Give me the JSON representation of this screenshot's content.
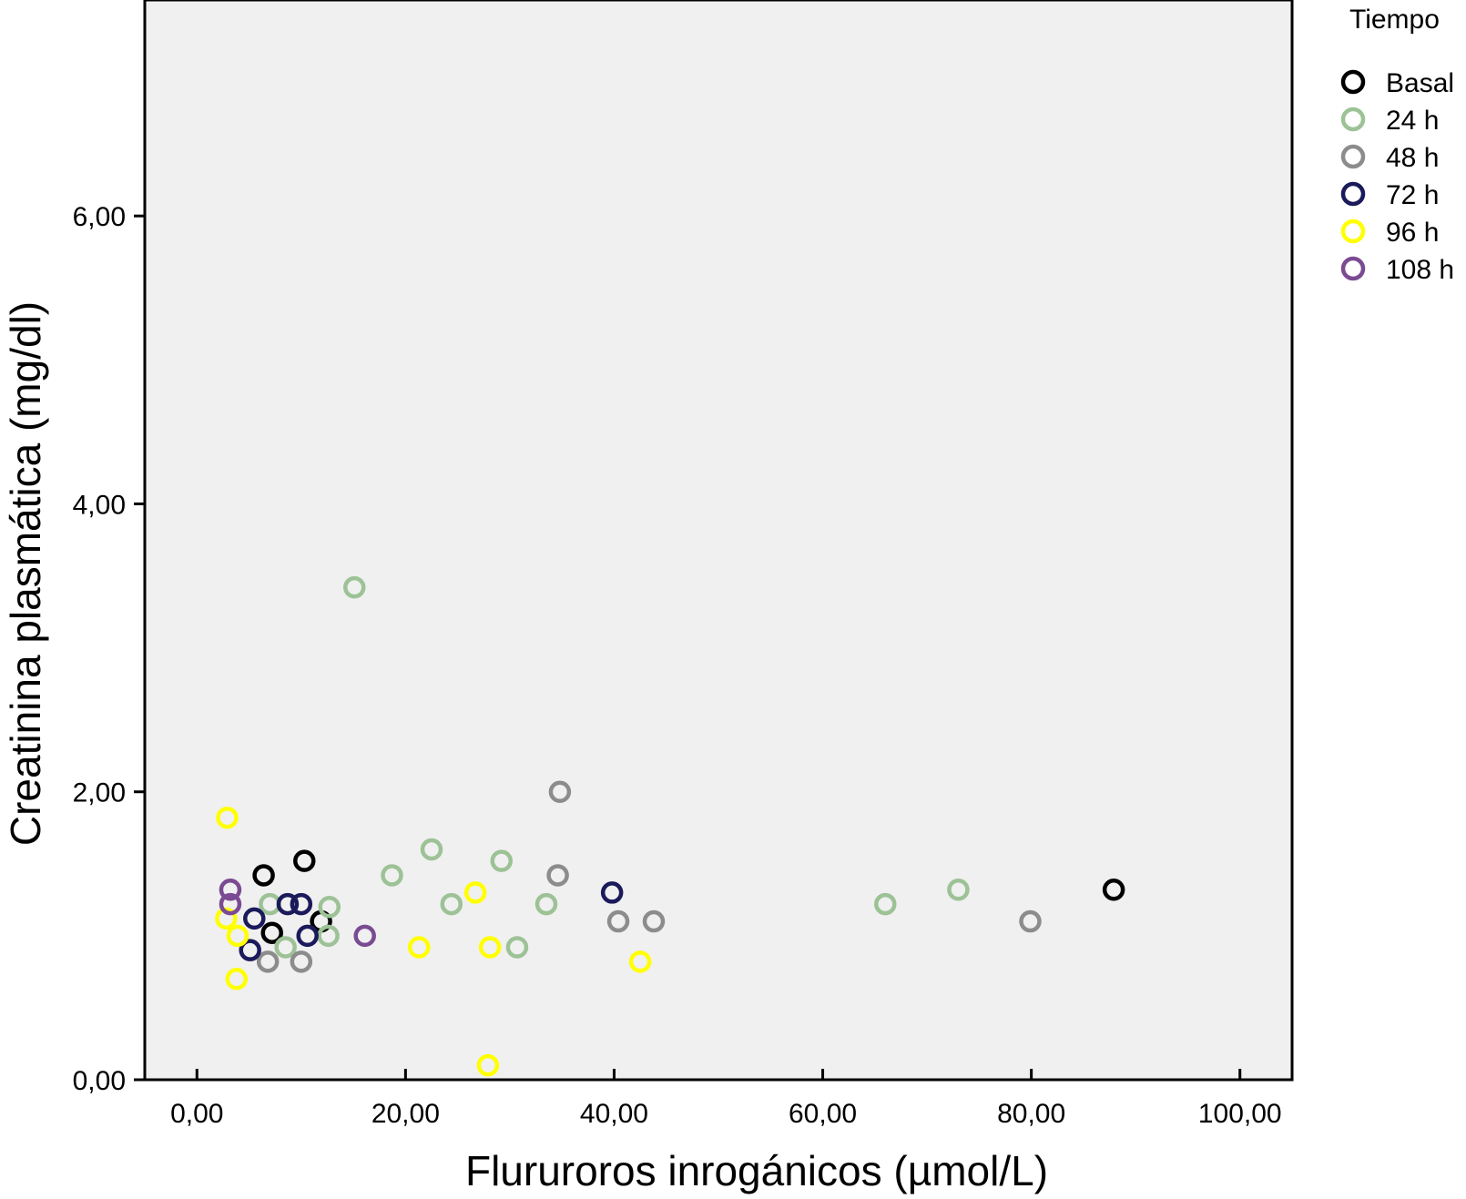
{
  "chart_data": {
    "type": "scatter",
    "title": "",
    "xlabel": "Flururoros inrogánicos (µmol/L)",
    "ylabel": "Creatinina plasmática (mg/dl)",
    "xlim": [
      -5,
      105
    ],
    "ylim": [
      0,
      7.5
    ],
    "x_ticks": [
      0,
      20,
      40,
      60,
      80,
      100
    ],
    "x_tick_labels": [
      "0,00",
      "20,00",
      "40,00",
      "60,00",
      "80,00",
      "100,00"
    ],
    "y_ticks": [
      0,
      2,
      4,
      6
    ],
    "y_tick_labels": [
      "0,00",
      "2,00",
      "4,00",
      "6,00"
    ],
    "grid": false,
    "plot_background": "#f0f0f0",
    "legend": {
      "title": "Tiempo",
      "position": "right"
    },
    "series": [
      {
        "name": "Basal",
        "color": "#000000",
        "points": [
          [
            6.4,
            1.42
          ],
          [
            10.3,
            1.52
          ],
          [
            7.2,
            1.02
          ],
          [
            11.9,
            1.1
          ],
          [
            87.9,
            1.32
          ]
        ]
      },
      {
        "name": "24 h",
        "color": "#9cc296",
        "points": [
          [
            15.1,
            3.42
          ],
          [
            18.7,
            1.42
          ],
          [
            22.5,
            1.6
          ],
          [
            29.2,
            1.52
          ],
          [
            24.4,
            1.22
          ],
          [
            33.5,
            1.22
          ],
          [
            30.7,
            0.92
          ],
          [
            7.0,
            1.22
          ],
          [
            12.7,
            1.2
          ],
          [
            12.6,
            1.0
          ],
          [
            8.5,
            0.92
          ],
          [
            66.0,
            1.22
          ],
          [
            73.0,
            1.32
          ]
        ]
      },
      {
        "name": "48 h",
        "color": "#8c8c8c",
        "points": [
          [
            34.8,
            2.0
          ],
          [
            34.6,
            1.42
          ],
          [
            40.4,
            1.1
          ],
          [
            43.8,
            1.1
          ],
          [
            79.9,
            1.1
          ],
          [
            6.8,
            0.82
          ],
          [
            10.0,
            0.82
          ]
        ]
      },
      {
        "name": "72 h",
        "color": "#1b1a5b",
        "points": [
          [
            39.8,
            1.3
          ],
          [
            8.7,
            1.22
          ],
          [
            10.0,
            1.22
          ],
          [
            5.5,
            1.12
          ],
          [
            10.6,
            1.0
          ],
          [
            5.1,
            0.9
          ]
        ]
      },
      {
        "name": "96 h",
        "color": "#ffff00",
        "points": [
          [
            2.9,
            1.82
          ],
          [
            2.8,
            1.12
          ],
          [
            3.9,
            1.0
          ],
          [
            3.8,
            0.7
          ],
          [
            26.7,
            1.3
          ],
          [
            21.3,
            0.92
          ],
          [
            28.1,
            0.92
          ],
          [
            42.5,
            0.82
          ],
          [
            27.9,
            0.1
          ]
        ]
      },
      {
        "name": "108 h",
        "color": "#7a4b92",
        "points": [
          [
            3.2,
            1.32
          ],
          [
            3.2,
            1.22
          ],
          [
            16.1,
            1.0
          ]
        ]
      }
    ]
  }
}
